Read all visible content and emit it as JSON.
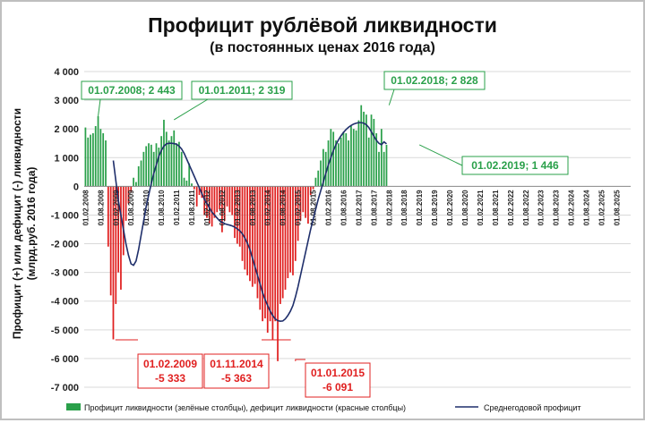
{
  "chart_data": {
    "type": "bar",
    "title": "Профицит рублёвой ликвидности",
    "subtitle": "(в постоянных ценах 2016 года)",
    "ylabel_line1": "Профицит (+) или дефицит (-) ликвидности",
    "ylabel_line2": "(млрд.руб. 2016 года)",
    "ylim": [
      -7000,
      4000
    ],
    "yticks": [
      4000,
      3000,
      2000,
      1000,
      0,
      -1000,
      -2000,
      -3000,
      -4000,
      -5000,
      -6000,
      -7000
    ],
    "ytick_labels": [
      "4 000",
      "3 000",
      "2 000",
      "1 000",
      "0",
      "-1 000",
      "-2 000",
      "-3 000",
      "-4 000",
      "-5 000",
      "-6 000",
      "-7 000"
    ],
    "xtick_labels": [
      "01.02.2008",
      "01.08.2008",
      "01.02.2009",
      "01.08.2009",
      "01.02.2010",
      "01.08.2010",
      "01.02.2011",
      "01.08.2011",
      "01.02.2012",
      "01.08.2012",
      "01.02.2013",
      "01.08.2013",
      "01.02.2014",
      "01.08.2014",
      "01.02.2015",
      "01.08.2015",
      "01.02.2016",
      "01.08.2016",
      "01.02.2017",
      "01.08.2017",
      "01.02.2018",
      "01.08.2018",
      "01.02.2019",
      "01.08.2019",
      "01.02.2020",
      "01.08.2020",
      "01.02.2021",
      "01.08.2021",
      "01.02.2022",
      "01.08.2022",
      "01.02.2023",
      "01.08.2023",
      "01.02.2024",
      "01.08.2024",
      "01.02.2025",
      "01.08.2025"
    ],
    "bar_series": {
      "name": "Профицит ликвидности (зелёные столбцы), дефицит ликвидности (красные столбцы)",
      "start": "2008-02",
      "frequency": "monthly",
      "values": [
        2050,
        1700,
        1800,
        1850,
        2100,
        2443,
        2000,
        1850,
        1600,
        -2100,
        -3800,
        -5333,
        -4100,
        -3000,
        -3600,
        -2400,
        -1200,
        -600,
        -200,
        300,
        150,
        700,
        900,
        1200,
        1400,
        1500,
        1450,
        1200,
        1500,
        1350,
        1750,
        2319,
        1900,
        1600,
        1750,
        1950,
        1500,
        1550,
        1200,
        300,
        200,
        800,
        100,
        -100,
        -700,
        -300,
        -400,
        -1000,
        -1100,
        -1300,
        -1400,
        -1100,
        -900,
        -800,
        -1600,
        -1200,
        -700,
        -900,
        -1000,
        -1800,
        -2000,
        -2100,
        -2600,
        -2900,
        -3100,
        -3300,
        -3500,
        -3400,
        -3900,
        -4300,
        -4700,
        -4600,
        -5100,
        -4700,
        -5363,
        -4700,
        -6091,
        -4100,
        -3900,
        -3600,
        -3200,
        -3000,
        -3100,
        -2600,
        -1900,
        -1200,
        -900,
        -1100,
        -1300,
        -300,
        -100,
        300,
        550,
        900,
        1300,
        1200,
        1600,
        2000,
        1900,
        1600,
        1500,
        1700,
        1900,
        1850,
        1600,
        2100,
        2000,
        1950,
        2300,
        2828,
        2600,
        2500,
        1700,
        2500,
        2350,
        1850,
        1200,
        2000,
        1200,
        1446
      ]
    },
    "line_series": {
      "name": "Среднегодовой профицит",
      "start": "2009-01",
      "frequency": "monthly",
      "values": [
        900,
        200,
        -500,
        -1000,
        -1500,
        -2000,
        -2400,
        -2700,
        -2750,
        -2600,
        -2200,
        -1700,
        -1200,
        -700,
        -300,
        100,
        450,
        750,
        1050,
        1250,
        1400,
        1480,
        1500,
        1500,
        1490,
        1470,
        1400,
        1300,
        1150,
        950,
        750,
        550,
        350,
        150,
        -50,
        -250,
        -450,
        -600,
        -750,
        -900,
        -1000,
        -1100,
        -1200,
        -1250,
        -1300,
        -1330,
        -1350,
        -1380,
        -1420,
        -1480,
        -1550,
        -1650,
        -1800,
        -1980,
        -2200,
        -2500,
        -2800,
        -3100,
        -3400,
        -3700,
        -3950,
        -4150,
        -4350,
        -4500,
        -4620,
        -4680,
        -4700,
        -4690,
        -4620,
        -4500,
        -4350,
        -4150,
        -3850,
        -3500,
        -3100,
        -2700,
        -2300,
        -1900,
        -1500,
        -1150,
        -800,
        -450,
        -150,
        150,
        450,
        750,
        1000,
        1250,
        1450,
        1620,
        1760,
        1880,
        1980,
        2060,
        2120,
        2170,
        2200,
        2220,
        2220,
        2200,
        2150,
        2050,
        1900,
        1750,
        1600,
        1500,
        1450,
        1550,
        1480
      ]
    },
    "annotations": [
      {
        "text": "01.07.2008; 2 443",
        "color": "green"
      },
      {
        "text": "01.01.2011; 2 319",
        "color": "green"
      },
      {
        "text": "01.02.2018; 2 828",
        "color": "green"
      },
      {
        "text": "01.02.2019; 1 446",
        "color": "green"
      },
      {
        "line1": "01.02.2009",
        "line2": "-5 333",
        "color": "red"
      },
      {
        "line1": "01.11.2014",
        "line2": "-5 363",
        "color": "red"
      },
      {
        "line1": "01.01.2015",
        "line2": "-6 091",
        "color": "red"
      }
    ],
    "colors": {
      "positive": "#2aa04a",
      "negative": "#e02020",
      "line": "#1f2f6b",
      "grid": "#d9d9d9"
    },
    "grid": true,
    "legend_position": "bottom"
  }
}
